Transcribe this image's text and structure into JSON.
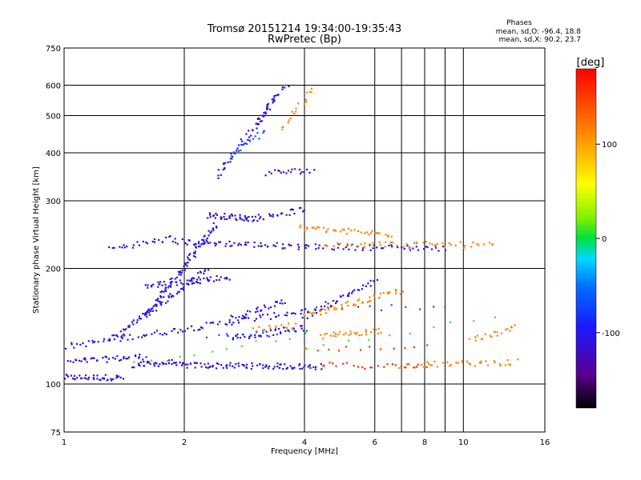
{
  "chart_data": {
    "type": "scatter",
    "title": "Tromsø 20151214 19:34:00-19:35:43",
    "subtitle": "RwPretec (Bp)",
    "xlabel": "Frequency [MHz]",
    "ylabel": "Stationary phase Virtual Height [km]",
    "x_scale": "log",
    "y_scale": "log",
    "xlim": [
      1,
      16
    ],
    "ylim": [
      75,
      750
    ],
    "x_ticks": [
      1,
      2,
      4,
      6,
      8,
      10,
      16
    ],
    "x_gridlines": [
      2,
      4,
      6,
      7,
      8,
      9,
      10
    ],
    "y_ticks": [
      75,
      100,
      200,
      300,
      400,
      500,
      600,
      750
    ],
    "y_gridlines": [
      100,
      200,
      300,
      400,
      500,
      600
    ],
    "grid": true,
    "info_block": {
      "heading": "Phases",
      "line1": "mean, sd,O: -96.4, 18.8",
      "line2": "mean, sd,X:  90.2, 23.7"
    },
    "colorbar": {
      "label": "[deg]",
      "range": [
        -180,
        180
      ],
      "ticks": [
        100,
        0,
        -100
      ],
      "colormap": "rainbow: black-purple-blue-cyan-green-yellow-orange-red"
    },
    "series": [
      {
        "color_value": -110,
        "traces": [
          {
            "x": [
              1.0,
              1.4
            ],
            "y": [
              104,
              104
            ],
            "count": 40
          },
          {
            "x": [
              1.0,
              1.6
            ],
            "y": [
              114,
              118
            ],
            "count": 40
          },
          {
            "x": [
              1.5,
              1.9
            ],
            "y": [
              112,
              114
            ],
            "count": 30
          },
          {
            "x": [
              1.9,
              4.4
            ],
            "y": [
              112,
              111
            ],
            "count": 90
          },
          {
            "x": [
              1.0,
              4.0
            ],
            "y": [
              125,
              155
            ],
            "count": 90
          },
          {
            "x": [
              1.3,
              2.3
            ],
            "y": [
              130,
              200
            ],
            "count": 70
          },
          {
            "x": [
              1.6,
              2.6
            ],
            "y": [
              180,
              190
            ],
            "count": 50
          },
          {
            "x": [
              1.6,
              2.4
            ],
            "y": [
              150,
              260
            ],
            "count": 90
          },
          {
            "x": [
              1.3,
              1.9
            ],
            "y": [
              225,
              240
            ],
            "count": 25
          },
          {
            "x": [
              1.9,
              4.0
            ],
            "y": [
              235,
              228
            ],
            "count": 60
          },
          {
            "x": [
              2.3,
              3.0
            ],
            "y": [
              275,
              270
            ],
            "count": 40
          },
          {
            "x": [
              3.0,
              4.0
            ],
            "y": [
              270,
              285
            ],
            "count": 25
          },
          {
            "x": [
              2.4,
              3.4
            ],
            "y": [
              345,
              560
            ],
            "count": 50
          },
          {
            "x": [
              3.0,
              3.6
            ],
            "y": [
              480,
              600
            ],
            "count": 20
          },
          {
            "x": [
              3.2,
              4.2
            ],
            "y": [
              355,
              360
            ],
            "count": 20
          },
          {
            "x": [
              2.6,
              3.6
            ],
            "y": [
              148,
              165
            ],
            "count": 30
          },
          {
            "x": [
              2.6,
              4.0
            ],
            "y": [
              132,
              140
            ],
            "count": 40
          },
          {
            "x": [
              4.0,
              9.0
            ],
            "y": [
              228,
              226
            ],
            "count": 50
          },
          {
            "x": [
              4.0,
              6.0
            ],
            "y": [
              150,
              185
            ],
            "count": 40
          }
        ]
      },
      {
        "color_value": -60,
        "traces": [
          {
            "x": [
              2.6,
              3.2
            ],
            "y": [
              390,
              460
            ],
            "count": 18
          },
          {
            "x": [
              2.3,
              4.0
            ],
            "y": [
              133,
              136
            ],
            "count": 12
          },
          {
            "x": [
              4.0,
              9.0
            ],
            "y": [
              156,
              160
            ],
            "count": 12
          }
        ]
      },
      {
        "color_value": 115,
        "traces": [
          {
            "x": [
              3.5,
              4.2
            ],
            "y": [
              460,
              590
            ],
            "count": 18
          },
          {
            "x": [
              3.9,
              6.6
            ],
            "y": [
              255,
              245
            ],
            "count": 40
          },
          {
            "x": [
              4.5,
              12.0
            ],
            "y": [
              232,
              230
            ],
            "count": 50
          },
          {
            "x": [
              4.0,
              7.0
            ],
            "y": [
              150,
              175
            ],
            "count": 50
          },
          {
            "x": [
              4.4,
              6.2
            ],
            "y": [
              133,
              138
            ],
            "count": 30
          },
          {
            "x": [
              7.0,
              13.5
            ],
            "y": [
              112,
              114
            ],
            "count": 40
          },
          {
            "x": [
              10.5,
              13.5
            ],
            "y": [
              130,
              140
            ],
            "count": 20
          },
          {
            "x": [
              3.0,
              3.8
            ],
            "y": [
              138,
              142
            ],
            "count": 15
          }
        ]
      },
      {
        "color_value": 155,
        "traces": [
          {
            "x": [
              4.4,
              8.0
            ],
            "y": [
              112,
              111
            ],
            "count": 25
          },
          {
            "x": [
              4.0,
              8.0
            ],
            "y": [
              123,
              126
            ],
            "count": 12
          }
        ]
      },
      {
        "color_value": 10,
        "traces": [
          {
            "x": [
              1.5,
              4.0
            ],
            "y": [
              113,
              135
            ],
            "count": 12
          },
          {
            "x": [
              4.0,
              12.0
            ],
            "y": [
              122,
              150
            ],
            "count": 10
          }
        ]
      }
    ]
  }
}
